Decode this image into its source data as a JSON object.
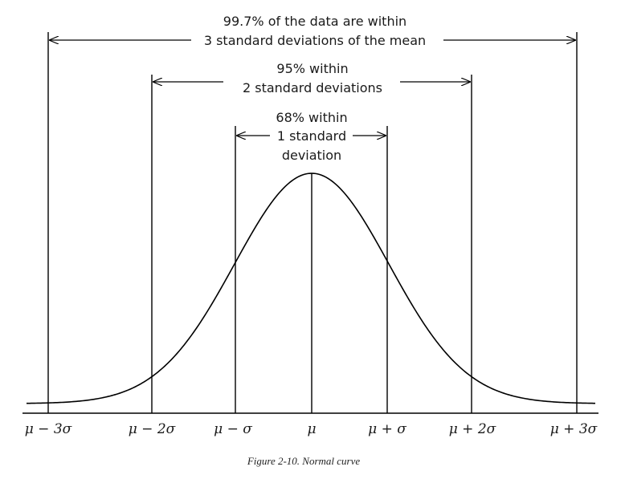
{
  "annotations": {
    "band3": {
      "line1": "99.7% of the data are within",
      "line2": "3 standard deviations of the mean"
    },
    "band2": {
      "line1": "95% within",
      "line2": "2 standard deviations"
    },
    "band1": {
      "line1": "68% within",
      "line2": "1 standard",
      "line3": "deviation"
    }
  },
  "axis": {
    "ticks": [
      "μ − 3σ",
      "μ − 2σ",
      "μ − σ",
      "μ",
      "μ + σ",
      "μ + 2σ",
      "μ + 3σ"
    ]
  },
  "caption": "Figure 2-10. Normal curve",
  "colors": {
    "ink": "#000000",
    "text": "#1a1a1a"
  }
}
